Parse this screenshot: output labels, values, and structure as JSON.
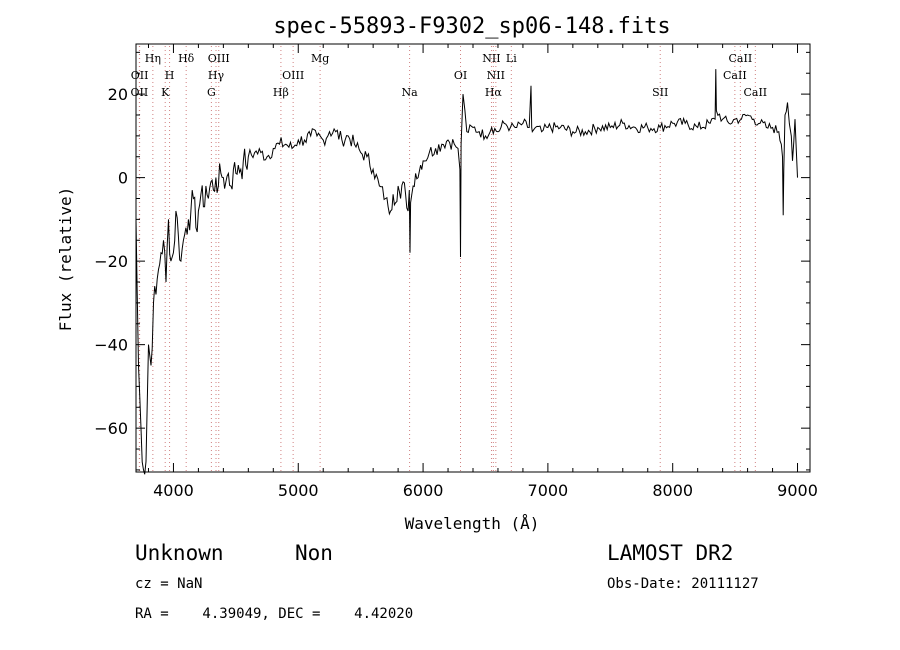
{
  "chart_data": {
    "type": "line",
    "title": "spec-55893-F9302_sp06-148.fits",
    "xlabel": "Wavelength (Å)",
    "ylabel": "Flux (relative)",
    "xlim": [
      3700,
      9100
    ],
    "ylim": [
      -70.5,
      32
    ],
    "x_ticks": [
      4000,
      5000,
      6000,
      7000,
      8000,
      9000
    ],
    "y_ticks": [
      -60,
      -40,
      -20,
      0,
      20
    ],
    "grid": false,
    "line_color": "#000000",
    "marker_line_color": "#d08080",
    "series": [
      {
        "x": [
          3700,
          3720,
          3740,
          3760,
          3780,
          3800,
          3820,
          3840,
          3860,
          3880,
          3900,
          3920,
          3940,
          3960,
          3980,
          4000,
          4020,
          4040,
          4060,
          4080,
          4100,
          4120,
          4140,
          4160,
          4180,
          4200,
          4220,
          4240,
          4260,
          4280,
          4300,
          4320,
          4340,
          4360,
          4380,
          4400,
          4420,
          4440,
          4460,
          4480,
          4500,
          4520,
          4540,
          4560,
          4580,
          4600,
          4650,
          4700,
          4750,
          4800,
          4850,
          4900,
          4950,
          5000,
          5050,
          5100,
          5150,
          5200,
          5250,
          5300,
          5350,
          5400,
          5450,
          5500,
          5550,
          5600,
          5650,
          5700,
          5720,
          5740,
          5760,
          5780,
          5800,
          5820,
          5840,
          5860,
          5880,
          5890,
          5895,
          5900,
          5920,
          5940,
          5960,
          5980,
          6000,
          6050,
          6100,
          6150,
          6200,
          6250,
          6280,
          6295,
          6300,
          6305,
          6320,
          6350,
          6400,
          6450,
          6500,
          6550,
          6600,
          6650,
          6700,
          6750,
          6800,
          6850,
          6865,
          6870,
          6875,
          6900,
          6950,
          7000,
          7100,
          7200,
          7300,
          7400,
          7500,
          7600,
          7700,
          7800,
          7900,
          8000,
          8100,
          8200,
          8300,
          8340,
          8345,
          8350,
          8400,
          8450,
          8500,
          8550,
          8600,
          8650,
          8700,
          8750,
          8800,
          8850,
          8870,
          8880,
          8885,
          8890,
          8900,
          8920,
          8950,
          8960,
          8980,
          9000
        ],
        "y": [
          -10,
          -45,
          -60,
          -70,
          -68,
          -40,
          -45,
          -30,
          -28,
          -22,
          -18,
          -15,
          -25,
          -10,
          -20,
          -18,
          -8,
          -14,
          -20,
          -15,
          -12,
          -10,
          -8,
          -5,
          -12,
          -8,
          -4,
          -7,
          -2,
          -5,
          -1,
          -3,
          0,
          -2,
          1,
          0,
          -1,
          1,
          -2,
          2,
          1,
          3,
          2,
          4,
          3,
          5,
          6,
          6,
          5,
          7,
          8,
          8,
          7,
          9,
          9,
          10,
          10,
          9,
          11,
          11,
          9,
          10,
          8,
          6,
          5,
          2,
          -2,
          -5,
          -7,
          -8,
          -4,
          -6,
          -2,
          -5,
          -1,
          -4,
          -8,
          -3,
          -18,
          -6,
          -2,
          1,
          0,
          3,
          4,
          6,
          7,
          8,
          9,
          8,
          7,
          2,
          -19,
          8,
          20,
          11,
          12,
          11,
          10,
          12,
          11,
          13,
          12,
          12,
          13,
          12,
          22,
          12,
          11,
          12,
          11,
          12,
          12,
          11,
          11,
          12,
          12,
          13,
          12,
          12,
          12,
          13,
          13,
          12,
          13,
          14,
          26,
          16,
          14,
          13,
          14,
          14,
          15,
          14,
          13,
          12,
          12,
          11,
          8,
          5,
          -9,
          2,
          15,
          18,
          10,
          4,
          14,
          0
        ]
      }
    ],
    "lines": [
      {
        "wl": 3727,
        "label": "OII",
        "row": 3
      },
      {
        "wl": 3729,
        "label": "OII",
        "row": 2
      },
      {
        "wl": 3835,
        "label": "Hη",
        "row": 1
      },
      {
        "wl": 3934,
        "label": "K",
        "row": 3
      },
      {
        "wl": 3969,
        "label": "H",
        "row": 2
      },
      {
        "wl": 4102,
        "label": "Hδ",
        "row": 1
      },
      {
        "wl": 4304,
        "label": "G",
        "row": 3
      },
      {
        "wl": 4341,
        "label": "Hγ",
        "row": 2
      },
      {
        "wl": 4363,
        "label": "OIII",
        "row": 1
      },
      {
        "wl": 4861,
        "label": "Hβ",
        "row": 3
      },
      {
        "wl": 4959,
        "label": "OIII",
        "row": 2
      },
      {
        "wl": 5175,
        "label": "Mg",
        "row": 1
      },
      {
        "wl": 5892,
        "label": "Na",
        "row": 3
      },
      {
        "wl": 6300,
        "label": "OI",
        "row": 2
      },
      {
        "wl": 6548,
        "label": "NII",
        "row": 1
      },
      {
        "wl": 6563,
        "label": "Hα",
        "row": 3
      },
      {
        "wl": 6583,
        "label": "NII",
        "row": 2
      },
      {
        "wl": 6707,
        "label": "Li",
        "row": 1
      },
      {
        "wl": 7900,
        "label": "SII",
        "row": 3
      },
      {
        "wl": 8498,
        "label": "CaII",
        "row": 2
      },
      {
        "wl": 8542,
        "label": "CaII",
        "row": 1
      },
      {
        "wl": 8662,
        "label": "CaII",
        "row": 3
      }
    ]
  },
  "info": {
    "class": "Unknown",
    "subclass": "Non",
    "survey": "LAMOST DR2",
    "cz": "cz = NaN",
    "obs_date": "Obs-Date: 20111127",
    "coords": "RA =    4.39049, DEC =    4.42020"
  }
}
